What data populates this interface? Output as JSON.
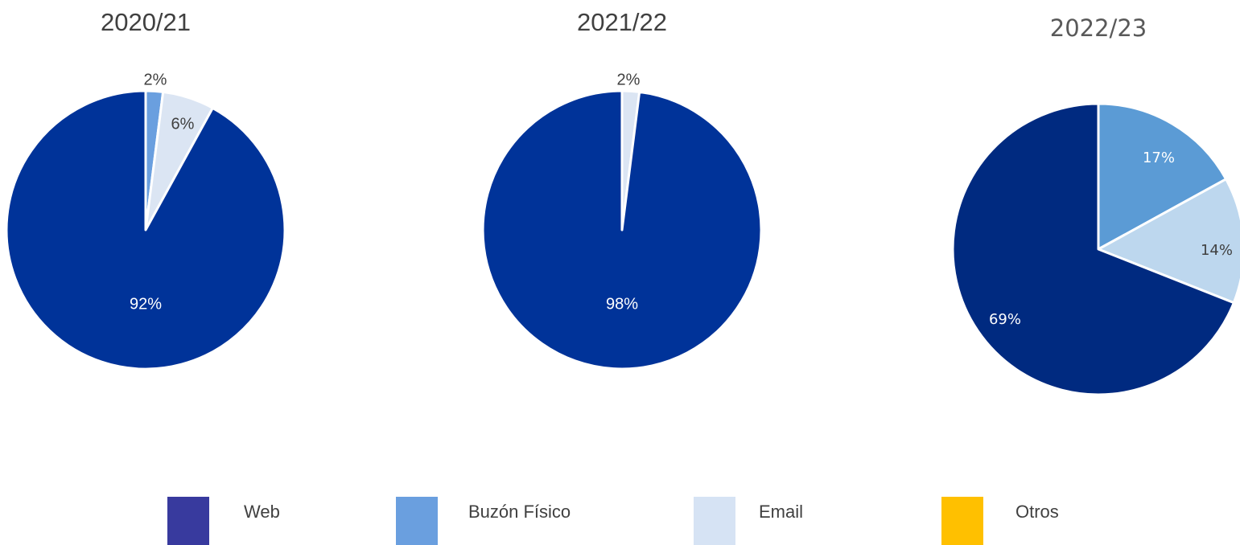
{
  "chart_data": [
    {
      "type": "pie",
      "title": "2020/21",
      "start_angle_deg": 0,
      "slices": [
        {
          "name": "Buzón Físico",
          "value": 2,
          "label": "2%",
          "color": "#6a9fdf"
        },
        {
          "name": "Email",
          "value": 6,
          "label": "6%",
          "color": "#dbe5f3"
        },
        {
          "name": "Web",
          "value": 92,
          "label": "92%",
          "color": "#003399"
        }
      ]
    },
    {
      "type": "pie",
      "title": "2021/22",
      "start_angle_deg": 0,
      "slices": [
        {
          "name": "Email",
          "value": 2,
          "label": "2%",
          "color": "#dbe5f3"
        },
        {
          "name": "Web",
          "value": 98,
          "label": "98%",
          "color": "#003399"
        }
      ]
    },
    {
      "type": "pie",
      "title": "2022/23",
      "start_angle_deg": 0,
      "slices": [
        {
          "name": "Buzón Físico",
          "value": 17,
          "label": "17%",
          "color": "#5b9bd5"
        },
        {
          "name": "Email",
          "value": 14,
          "label": "14%",
          "color": "#bdd7ee"
        },
        {
          "name": "Web",
          "value": 69,
          "label": "69%",
          "color": "#002a80"
        }
      ]
    }
  ],
  "legend": {
    "position": "bottom",
    "items": [
      {
        "label": "Web",
        "color": "#383a9e"
      },
      {
        "label": "Buzón Físico",
        "color": "#6a9fdf"
      },
      {
        "label": "Email",
        "color": "#d6e3f4"
      },
      {
        "label": "Otros",
        "color": "#ffc000"
      }
    ]
  }
}
